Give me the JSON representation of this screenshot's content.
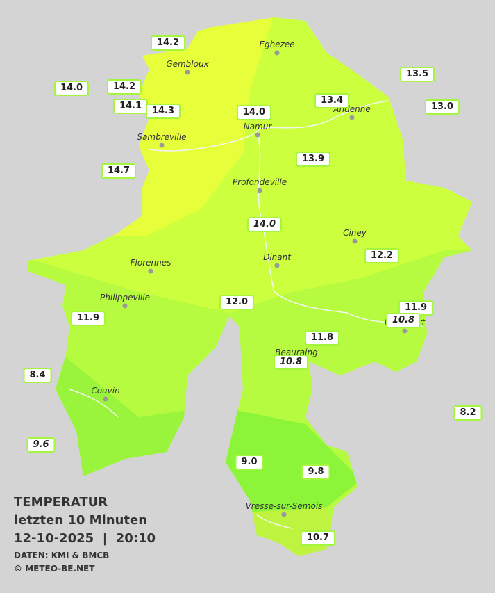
{
  "header": {
    "title": "TEMPERATUR",
    "subtitle": "letzten 10 Minuten",
    "datetime": "12-10-2025  |  20:10",
    "source": "DATEN: KMI & BMCB",
    "copyright": "© METEO-BE.NET"
  },
  "cities": [
    "Eghezee",
    "Gembloux",
    "Andenne",
    "Namur",
    "Sambreville",
    "Profondeville",
    "Ciney",
    "Dinant",
    "Florennes",
    "Philippeville",
    "Rochefort",
    "Beauraing",
    "Couvin",
    "Vresse-sur-Semois"
  ],
  "stations": [
    "14.2",
    "14.0",
    "14.2",
    "14.1",
    "14.3",
    "14.0",
    "13.4",
    "13.5",
    "13.0",
    "14.7",
    "13.9",
    "14.0",
    "12.2",
    "12.0",
    "11.9",
    "10.8",
    "11.9",
    "11.8",
    "10.8",
    "8.4",
    "8.2",
    "9.6",
    "9.0",
    "9.8",
    "10.7"
  ]
}
